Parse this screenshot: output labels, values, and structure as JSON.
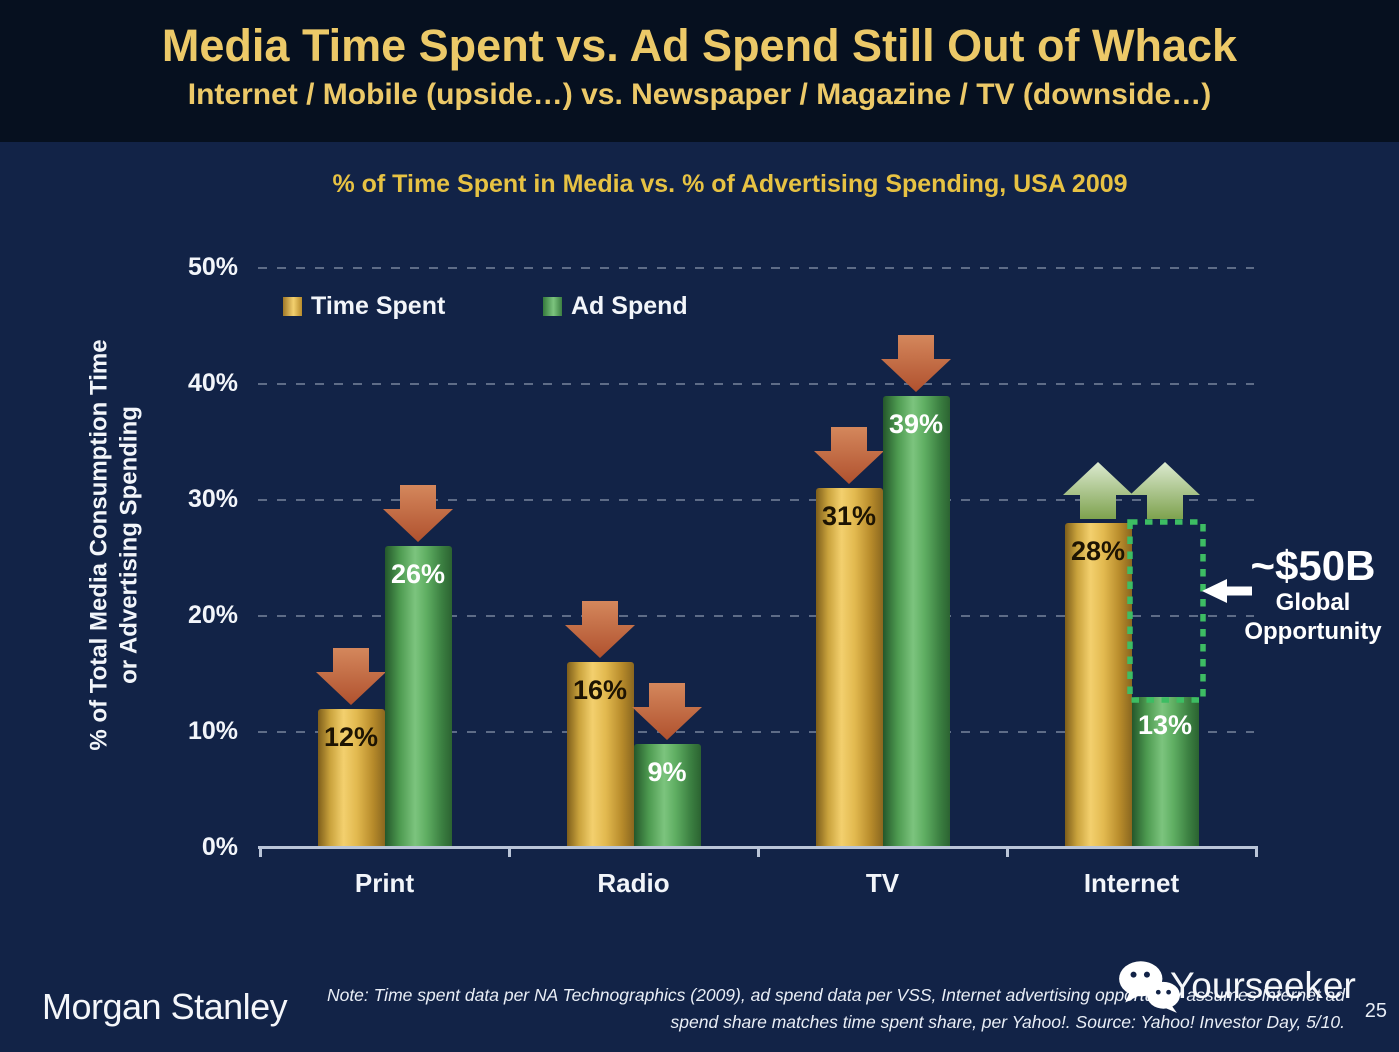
{
  "slide": {
    "title": "Media Time Spent vs. Ad Spend Still Out of Whack",
    "subtitle": "Internet / Mobile (upside…) vs. Newspaper / Magazine / TV (downside…)"
  },
  "chart_data": {
    "type": "bar",
    "title": "% of Time Spent in Media vs. % of Advertising Spending, USA 2009",
    "ylabel_line1": "% of Total Media Consumption Time",
    "ylabel_line2": "or Advertising Spending",
    "categories": [
      "Print",
      "Radio",
      "TV",
      "Internet"
    ],
    "series": [
      {
        "name": "Time Spent",
        "color_key": "gold",
        "values": [
          12,
          16,
          31,
          28
        ],
        "labels": [
          "12%",
          "16%",
          "31%",
          "28%"
        ],
        "arrows": [
          "down",
          "down",
          "down",
          "up"
        ]
      },
      {
        "name": "Ad Spend",
        "color_key": "green",
        "values": [
          26,
          9,
          39,
          13
        ],
        "labels": [
          "26%",
          "9%",
          "39%",
          "13%"
        ],
        "arrows": [
          "down",
          "down",
          "down",
          "up"
        ]
      }
    ],
    "ylim": [
      0,
      50
    ],
    "yticks": [
      0,
      10,
      20,
      30,
      40,
      50
    ],
    "ytick_labels": [
      "0%",
      "10%",
      "20%",
      "30%",
      "40%",
      "50%"
    ],
    "grid": "dashed horizontal gridlines at 10-50%",
    "legend_position": "inside plot, upper left",
    "annotation": {
      "category": "Internet",
      "series": "Ad Spend",
      "gap_from": 13,
      "gap_to": 28,
      "label_big": "~$50B",
      "label_line2": "Global",
      "label_line3": "Opportunity"
    }
  },
  "colors": {
    "background": "#122347",
    "header_background": "#06101f",
    "title_gold": "#ecc968",
    "chart_title_gold": "#e7c243",
    "bar_gold_light": "#f3d06e",
    "bar_gold_dark": "#7e5e1a",
    "bar_green_light": "#7cc47e",
    "bar_green_dark": "#24572b",
    "arrow_down_red_top": "#d4875c",
    "arrow_down_red_bottom": "#b0512e",
    "arrow_up_green_top": "#dcead0",
    "arrow_up_green_bottom": "#7ea24e",
    "dotted_box_green": "#3dbd63",
    "axis_line": "#bac5d8",
    "text_white": "#f2f5fa",
    "gold_value_text": "#1d1403"
  },
  "footer": {
    "brand": "Morgan Stanley",
    "note_line1": "Note: Time spent data per NA Technographics (2009), ad spend data per VSS, Internet advertising opportunity assumes Internet ad",
    "note_line2": "spend share matches time spent share, per Yahoo!. Source: Yahoo! Investor Day, 5/10.",
    "watermark": "Yourseeker",
    "page_number": "25"
  }
}
